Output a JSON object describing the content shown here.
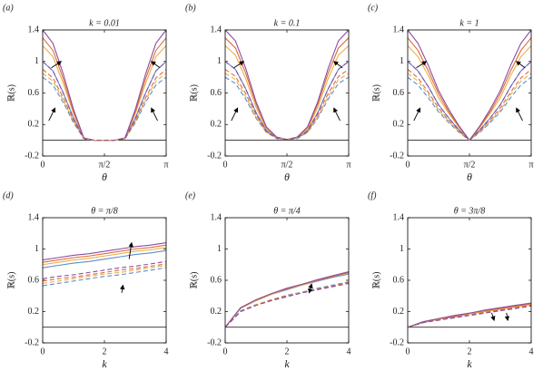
{
  "chart_data": [
    {
      "type": "line",
      "panel_label": "(a)",
      "title": "k = 0.01",
      "xlabel": "θ",
      "ylabel": "ℝ(s)",
      "x": [
        0,
        0.2618,
        0.5236,
        0.7854,
        1.0472,
        1.309,
        1.5708,
        1.8326,
        2.0944,
        2.3562,
        2.618,
        2.8798,
        3.1416
      ],
      "xlim": [
        0,
        3.1416
      ],
      "xticks": [
        0,
        {
          "value": 1.5708,
          "label": "π/2"
        },
        {
          "value": 3.1416,
          "label": "π"
        }
      ],
      "ylim": [
        -0.2,
        1.4
      ],
      "yticks": [
        -0.2,
        0.2,
        0.6,
        1,
        1.4
      ],
      "hline": 0,
      "series": [
        {
          "color": "#5a8fc8",
          "dash": false,
          "values": [
            1,
            0.88,
            0.6,
            0.28,
            0.02,
            0,
            0,
            0,
            0.02,
            0.28,
            0.6,
            0.88,
            1
          ]
        },
        {
          "color": "#e8b04a",
          "dash": false,
          "values": [
            1.2,
            1.06,
            0.72,
            0.34,
            0.02,
            0,
            0,
            0,
            0.02,
            0.34,
            0.72,
            1.06,
            1.2
          ]
        },
        {
          "color": "#e06a3a",
          "dash": false,
          "values": [
            1.3,
            1.14,
            0.78,
            0.36,
            0.03,
            0,
            0,
            0,
            0.03,
            0.36,
            0.78,
            1.14,
            1.3
          ]
        },
        {
          "color": "#8a4ea0",
          "dash": false,
          "values": [
            1.4,
            1.23,
            0.84,
            0.39,
            0.03,
            0,
            0,
            0,
            0.03,
            0.39,
            0.84,
            1.23,
            1.4
          ]
        },
        {
          "color": "#5a8fc8",
          "dash": true,
          "values": [
            0.8,
            0.7,
            0.48,
            0.22,
            0.02,
            0,
            0,
            0,
            0.02,
            0.22,
            0.48,
            0.7,
            0.8
          ]
        },
        {
          "color": "#e8b04a",
          "dash": true,
          "values": [
            0.85,
            0.75,
            0.51,
            0.24,
            0.02,
            0,
            0,
            0,
            0.02,
            0.24,
            0.51,
            0.75,
            0.85
          ]
        },
        {
          "color": "#e06a3a",
          "dash": true,
          "values": [
            0.9,
            0.79,
            0.54,
            0.25,
            0.02,
            0,
            0,
            0,
            0.02,
            0.25,
            0.54,
            0.79,
            0.9
          ]
        },
        {
          "color": "#8a4ea0",
          "dash": true,
          "values": [
            1,
            0.88,
            0.6,
            0.28,
            0.02,
            0,
            0,
            0,
            0.02,
            0.28,
            0.6,
            0.88,
            1
          ]
        }
      ]
    },
    {
      "type": "line",
      "panel_label": "(b)",
      "title": "k = 0.1",
      "xlabel": "θ",
      "ylabel": "ℝ(s)",
      "x": [
        0,
        0.2618,
        0.5236,
        0.7854,
        1.0472,
        1.309,
        1.5708,
        1.8326,
        2.0944,
        2.3562,
        2.618,
        2.8798,
        3.1416
      ],
      "xlim": [
        0,
        3.1416
      ],
      "xticks": [
        0,
        {
          "value": 1.5708,
          "label": "π/2"
        },
        {
          "value": 3.1416,
          "label": "π"
        }
      ],
      "ylim": [
        -0.2,
        1.4
      ],
      "yticks": [
        -0.2,
        0.2,
        0.6,
        1,
        1.4
      ],
      "hline": 0,
      "series": [
        {
          "color": "#5a8fc8",
          "dash": false,
          "values": [
            1,
            0.9,
            0.65,
            0.35,
            0.12,
            0.03,
            0.01,
            0.03,
            0.12,
            0.35,
            0.65,
            0.9,
            1
          ]
        },
        {
          "color": "#e8b04a",
          "dash": false,
          "values": [
            1.2,
            1.08,
            0.78,
            0.42,
            0.14,
            0.04,
            0.01,
            0.04,
            0.14,
            0.42,
            0.78,
            1.08,
            1.2
          ]
        },
        {
          "color": "#e06a3a",
          "dash": false,
          "values": [
            1.3,
            1.17,
            0.85,
            0.46,
            0.16,
            0.04,
            0.01,
            0.04,
            0.16,
            0.46,
            0.85,
            1.17,
            1.3
          ]
        },
        {
          "color": "#8a4ea0",
          "dash": false,
          "values": [
            1.4,
            1.26,
            0.91,
            0.49,
            0.17,
            0.04,
            0.01,
            0.04,
            0.17,
            0.49,
            0.91,
            1.26,
            1.4
          ]
        },
        {
          "color": "#5a8fc8",
          "dash": true,
          "values": [
            0.8,
            0.72,
            0.52,
            0.28,
            0.1,
            0.02,
            0.01,
            0.02,
            0.1,
            0.28,
            0.52,
            0.72,
            0.8
          ]
        },
        {
          "color": "#e8b04a",
          "dash": true,
          "values": [
            0.85,
            0.77,
            0.55,
            0.3,
            0.1,
            0.03,
            0.01,
            0.03,
            0.1,
            0.3,
            0.55,
            0.77,
            0.85
          ]
        },
        {
          "color": "#e06a3a",
          "dash": true,
          "values": [
            0.9,
            0.81,
            0.59,
            0.32,
            0.11,
            0.03,
            0.01,
            0.03,
            0.11,
            0.32,
            0.59,
            0.81,
            0.9
          ]
        },
        {
          "color": "#8a4ea0",
          "dash": true,
          "values": [
            1,
            0.9,
            0.65,
            0.35,
            0.12,
            0.03,
            0.01,
            0.03,
            0.12,
            0.35,
            0.65,
            0.9,
            1
          ]
        }
      ]
    },
    {
      "type": "line",
      "panel_label": "(c)",
      "title": "k = 1",
      "xlabel": "θ",
      "ylabel": "ℝ(s)",
      "x": [
        0,
        0.2618,
        0.5236,
        0.7854,
        1.0472,
        1.309,
        1.5708,
        1.8326,
        2.0944,
        2.3562,
        2.618,
        2.8798,
        3.1416
      ],
      "xlim": [
        0,
        3.1416
      ],
      "xticks": [
        0,
        {
          "value": 1.5708,
          "label": "π/2"
        },
        {
          "value": 3.1416,
          "label": "π"
        }
      ],
      "ylim": [
        -0.2,
        1.4
      ],
      "yticks": [
        -0.2,
        0.2,
        0.6,
        1,
        1.4
      ],
      "hline": 0,
      "series": [
        {
          "color": "#5a8fc8",
          "dash": false,
          "values": [
            1,
            0.88,
            0.68,
            0.45,
            0.28,
            0.13,
            0,
            0.13,
            0.28,
            0.45,
            0.68,
            0.88,
            1
          ]
        },
        {
          "color": "#e8b04a",
          "dash": false,
          "values": [
            1.2,
            1.06,
            0.82,
            0.54,
            0.34,
            0.16,
            0,
            0.16,
            0.34,
            0.54,
            0.82,
            1.06,
            1.2
          ]
        },
        {
          "color": "#e06a3a",
          "dash": false,
          "values": [
            1.3,
            1.14,
            0.88,
            0.59,
            0.36,
            0.17,
            0,
            0.17,
            0.36,
            0.59,
            0.88,
            1.14,
            1.3
          ]
        },
        {
          "color": "#8a4ea0",
          "dash": false,
          "values": [
            1.4,
            1.23,
            0.95,
            0.63,
            0.39,
            0.18,
            0,
            0.18,
            0.39,
            0.63,
            0.95,
            1.23,
            1.4
          ]
        },
        {
          "color": "#5a8fc8",
          "dash": true,
          "values": [
            0.8,
            0.7,
            0.54,
            0.36,
            0.22,
            0.1,
            0,
            0.1,
            0.22,
            0.36,
            0.54,
            0.7,
            0.8
          ]
        },
        {
          "color": "#e8b04a",
          "dash": true,
          "values": [
            0.85,
            0.75,
            0.58,
            0.38,
            0.24,
            0.11,
            0,
            0.11,
            0.24,
            0.38,
            0.58,
            0.75,
            0.85
          ]
        },
        {
          "color": "#e06a3a",
          "dash": true,
          "values": [
            0.9,
            0.79,
            0.61,
            0.41,
            0.25,
            0.12,
            0,
            0.12,
            0.25,
            0.41,
            0.61,
            0.79,
            0.9
          ]
        },
        {
          "color": "#8a4ea0",
          "dash": true,
          "values": [
            1,
            0.88,
            0.68,
            0.45,
            0.28,
            0.13,
            0,
            0.13,
            0.28,
            0.45,
            0.68,
            0.88,
            1
          ]
        }
      ]
    },
    {
      "type": "line",
      "panel_label": "(d)",
      "title": "θ = π/8",
      "xlabel": "k",
      "ylabel": "ℝ(s)",
      "x": [
        0,
        0.5,
        1,
        1.5,
        2,
        2.5,
        3,
        3.5,
        4
      ],
      "xlim": [
        0,
        4
      ],
      "xticks": [
        0,
        2,
        4
      ],
      "ylim": [
        -0.2,
        1.4
      ],
      "yticks": [
        -0.2,
        0.2,
        0.6,
        1,
        1.4
      ],
      "hline": 0,
      "series": [
        {
          "color": "#5a8fc8",
          "dash": false,
          "values": [
            0.76,
            0.79,
            0.82,
            0.84,
            0.87,
            0.9,
            0.93,
            0.95,
            0.98
          ]
        },
        {
          "color": "#e8b04a",
          "dash": false,
          "values": [
            0.8,
            0.83,
            0.86,
            0.88,
            0.91,
            0.94,
            0.97,
            0.99,
            1.02
          ]
        },
        {
          "color": "#e06a3a",
          "dash": false,
          "values": [
            0.83,
            0.86,
            0.89,
            0.91,
            0.94,
            0.97,
            1,
            1.02,
            1.05
          ]
        },
        {
          "color": "#8a4ea0",
          "dash": false,
          "values": [
            0.86,
            0.89,
            0.92,
            0.94,
            0.97,
            1,
            1.03,
            1.05,
            1.08
          ]
        },
        {
          "color": "#5a8fc8",
          "dash": true,
          "values": [
            0.53,
            0.56,
            0.59,
            0.62,
            0.65,
            0.67,
            0.7,
            0.73,
            0.76
          ]
        },
        {
          "color": "#e8b04a",
          "dash": true,
          "values": [
            0.56,
            0.59,
            0.62,
            0.65,
            0.68,
            0.7,
            0.73,
            0.76,
            0.79
          ]
        },
        {
          "color": "#e06a3a",
          "dash": true,
          "values": [
            0.59,
            0.62,
            0.64,
            0.67,
            0.7,
            0.73,
            0.75,
            0.78,
            0.81
          ]
        },
        {
          "color": "#8a4ea0",
          "dash": true,
          "values": [
            0.62,
            0.65,
            0.67,
            0.7,
            0.73,
            0.76,
            0.78,
            0.81,
            0.84
          ]
        }
      ]
    },
    {
      "type": "line",
      "panel_label": "(e)",
      "title": "θ = π/4",
      "xlabel": "k",
      "ylabel": "ℝ(s)",
      "x": [
        0,
        0.5,
        1,
        1.5,
        2,
        2.5,
        3,
        3.5,
        4
      ],
      "xlim": [
        0,
        4
      ],
      "xticks": [
        0,
        2,
        4
      ],
      "ylim": [
        -0.2,
        1.4
      ],
      "yticks": [
        -0.2,
        0.2,
        0.6,
        1,
        1.4
      ],
      "hline": 0,
      "series": [
        {
          "color": "#5a8fc8",
          "dash": false,
          "values": [
            0,
            0.24,
            0.34,
            0.42,
            0.48,
            0.54,
            0.59,
            0.64,
            0.68
          ]
        },
        {
          "color": "#e8b04a",
          "dash": false,
          "values": [
            0,
            0.24,
            0.34,
            0.42,
            0.49,
            0.54,
            0.6,
            0.65,
            0.69
          ]
        },
        {
          "color": "#e06a3a",
          "dash": false,
          "values": [
            0,
            0.25,
            0.35,
            0.43,
            0.49,
            0.55,
            0.6,
            0.65,
            0.7
          ]
        },
        {
          "color": "#8a4ea0",
          "dash": false,
          "values": [
            0,
            0.25,
            0.35,
            0.43,
            0.5,
            0.55,
            0.61,
            0.66,
            0.71
          ]
        },
        {
          "color": "#5a8fc8",
          "dash": true,
          "values": [
            0,
            0.21,
            0.29,
            0.35,
            0.41,
            0.45,
            0.5,
            0.54,
            0.58
          ]
        },
        {
          "color": "#e8b04a",
          "dash": true,
          "values": [
            0,
            0.2,
            0.29,
            0.35,
            0.4,
            0.45,
            0.49,
            0.53,
            0.57
          ]
        },
        {
          "color": "#e06a3a",
          "dash": true,
          "values": [
            0,
            0.2,
            0.28,
            0.35,
            0.4,
            0.44,
            0.49,
            0.53,
            0.57
          ]
        },
        {
          "color": "#8a4ea0",
          "dash": true,
          "values": [
            0,
            0.2,
            0.28,
            0.34,
            0.39,
            0.44,
            0.48,
            0.52,
            0.56
          ]
        }
      ]
    },
    {
      "type": "line",
      "panel_label": "(f)",
      "title": "θ = 3π/8",
      "xlabel": "k",
      "ylabel": "ℝ(s)",
      "x": [
        0,
        0.5,
        1,
        1.5,
        2,
        2.5,
        3,
        3.5,
        4
      ],
      "xlim": [
        0,
        4
      ],
      "xticks": [
        0,
        2,
        4
      ],
      "ylim": [
        -0.2,
        1.4
      ],
      "yticks": [
        -0.2,
        0.2,
        0.6,
        1,
        1.4
      ],
      "hline": 0,
      "series": [
        {
          "color": "#5a8fc8",
          "dash": false,
          "values": [
            0,
            0.06,
            0.1,
            0.13,
            0.17,
            0.2,
            0.23,
            0.26,
            0.29
          ]
        },
        {
          "color": "#e8b04a",
          "dash": false,
          "values": [
            0,
            0.06,
            0.1,
            0.14,
            0.17,
            0.2,
            0.23,
            0.26,
            0.29
          ]
        },
        {
          "color": "#e06a3a",
          "dash": false,
          "values": [
            0,
            0.07,
            0.11,
            0.14,
            0.18,
            0.21,
            0.24,
            0.27,
            0.3
          ]
        },
        {
          "color": "#8a4ea0",
          "dash": false,
          "values": [
            0,
            0.07,
            0.11,
            0.15,
            0.18,
            0.22,
            0.25,
            0.28,
            0.31
          ]
        },
        {
          "color": "#5a8fc8",
          "dash": true,
          "values": [
            0,
            0.06,
            0.09,
            0.13,
            0.16,
            0.19,
            0.22,
            0.25,
            0.28
          ]
        },
        {
          "color": "#e8b04a",
          "dash": true,
          "values": [
            0,
            0.06,
            0.09,
            0.13,
            0.16,
            0.19,
            0.22,
            0.25,
            0.28
          ]
        },
        {
          "color": "#e06a3a",
          "dash": true,
          "values": [
            0,
            0.06,
            0.09,
            0.13,
            0.16,
            0.19,
            0.22,
            0.25,
            0.28
          ]
        },
        {
          "color": "#8a4ea0",
          "dash": true,
          "values": [
            0,
            0.06,
            0.09,
            0.12,
            0.15,
            0.18,
            0.21,
            0.24,
            0.27
          ]
        }
      ]
    }
  ]
}
